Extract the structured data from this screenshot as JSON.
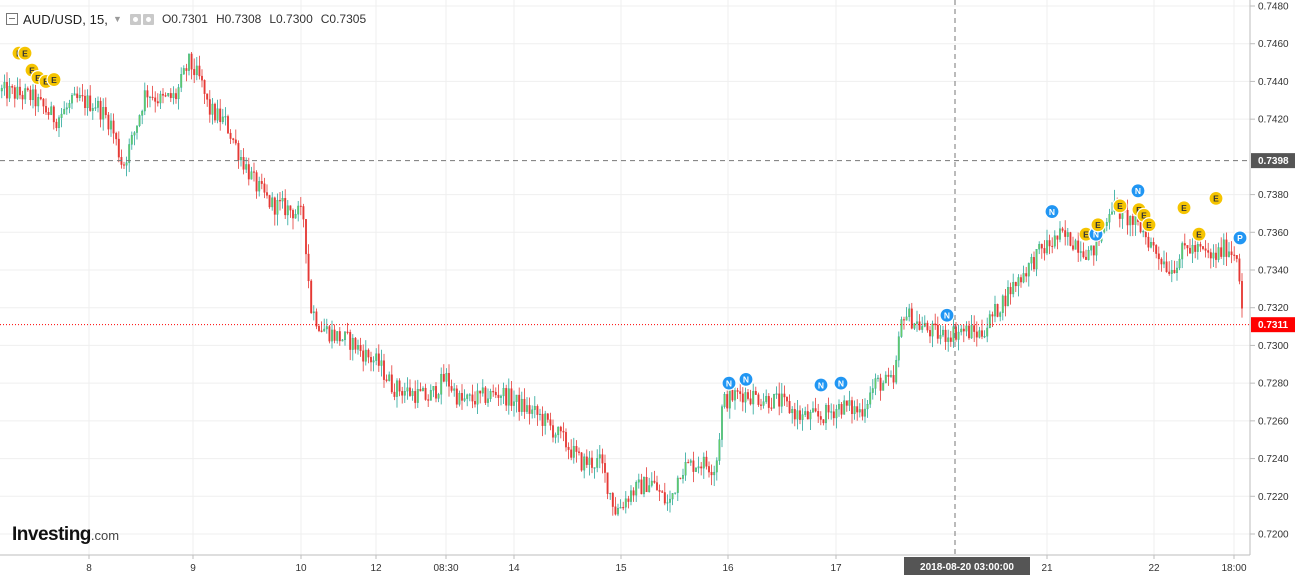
{
  "legend": {
    "symbol": "AUD/USD, 15,",
    "open": "O0.7301",
    "high": "H0.7308",
    "low": "L0.7300",
    "close": "C0.7305"
  },
  "brand": {
    "name": "Investing",
    "domain": ".com"
  },
  "crosshair": {
    "time_label": "2018-08-20 03:00:00",
    "price_label": "0.7398",
    "price": 0.7398
  },
  "last_price": {
    "label": "0.7311",
    "value": 0.7311
  },
  "colors": {
    "up": "#26a69a",
    "up_fill": "#66cc66",
    "down": "#e53935",
    "grid": "#efefef",
    "axis_text": "#333333",
    "last_price": "#ff0000",
    "event_E": "#f5c400",
    "event_N": "#2196f3",
    "label_dark": "#555555"
  },
  "chart_data": {
    "type": "candlestick",
    "title": "AUD/USD, 15,",
    "ylim": [
      0.7188,
      0.7482
    ],
    "y_ticks": [
      "0.7200",
      "0.7220",
      "0.7240",
      "0.7260",
      "0.7280",
      "0.7300",
      "0.7320",
      "0.7340",
      "0.7360",
      "0.7380",
      "0.7420",
      "0.7440",
      "0.7460",
      "0.7480"
    ],
    "x_ticks": [
      "8",
      "9",
      "10",
      "12",
      "08:30",
      "14",
      "15",
      "16",
      "17",
      "21",
      "22",
      "18:00"
    ],
    "grid": true,
    "series_path": [
      [
        0,
        0.7435
      ],
      [
        30,
        0.7432
      ],
      [
        55,
        0.742
      ],
      [
        75,
        0.743
      ],
      [
        95,
        0.7428
      ],
      [
        110,
        0.7418
      ],
      [
        122,
        0.7395
      ],
      [
        132,
        0.741
      ],
      [
        145,
        0.7435
      ],
      [
        160,
        0.743
      ],
      [
        175,
        0.7432
      ],
      [
        188,
        0.745
      ],
      [
        200,
        0.744
      ],
      [
        208,
        0.7425
      ],
      [
        225,
        0.7418
      ],
      [
        240,
        0.74
      ],
      [
        255,
        0.7385
      ],
      [
        270,
        0.7375
      ],
      [
        290,
        0.7372
      ],
      [
        303,
        0.7368
      ],
      [
        310,
        0.732
      ],
      [
        320,
        0.731
      ],
      [
        335,
        0.7305
      ],
      [
        350,
        0.7302
      ],
      [
        365,
        0.7295
      ],
      [
        378,
        0.729
      ],
      [
        392,
        0.7278
      ],
      [
        410,
        0.7275
      ],
      [
        428,
        0.7272
      ],
      [
        445,
        0.7283
      ],
      [
        460,
        0.727
      ],
      [
        478,
        0.7272
      ],
      [
        500,
        0.7275
      ],
      [
        520,
        0.7268
      ],
      [
        540,
        0.7262
      ],
      [
        562,
        0.725
      ],
      [
        580,
        0.7238
      ],
      [
        600,
        0.7238
      ],
      [
        615,
        0.7212
      ],
      [
        630,
        0.7222
      ],
      [
        650,
        0.7228
      ],
      [
        668,
        0.7215
      ],
      [
        680,
        0.7235
      ],
      [
        700,
        0.7238
      ],
      [
        715,
        0.7235
      ],
      [
        722,
        0.727
      ],
      [
        740,
        0.7275
      ],
      [
        760,
        0.7272
      ],
      [
        780,
        0.727
      ],
      [
        800,
        0.7262
      ],
      [
        820,
        0.7262
      ],
      [
        840,
        0.7268
      ],
      [
        860,
        0.7265
      ],
      [
        875,
        0.728
      ],
      [
        893,
        0.728
      ],
      [
        902,
        0.7318
      ],
      [
        920,
        0.731
      ],
      [
        940,
        0.7305
      ],
      [
        960,
        0.7308
      ],
      [
        980,
        0.7306
      ],
      [
        995,
        0.7318
      ],
      [
        1010,
        0.733
      ],
      [
        1025,
        0.734
      ],
      [
        1040,
        0.735
      ],
      [
        1060,
        0.7358
      ],
      [
        1075,
        0.7355
      ],
      [
        1090,
        0.7348
      ],
      [
        1100,
        0.7358
      ],
      [
        1110,
        0.7375
      ],
      [
        1125,
        0.7368
      ],
      [
        1140,
        0.7362
      ],
      [
        1155,
        0.735
      ],
      [
        1170,
        0.734
      ],
      [
        1185,
        0.7352
      ],
      [
        1200,
        0.735
      ],
      [
        1212,
        0.7346
      ],
      [
        1225,
        0.7352
      ],
      [
        1237,
        0.7348
      ],
      [
        1243,
        0.7311
      ]
    ],
    "events": [
      {
        "type": "E",
        "x": 19,
        "price": 0.7455
      },
      {
        "type": "E",
        "x": 25,
        "price": 0.7455
      },
      {
        "type": "E",
        "x": 32,
        "price": 0.7446
      },
      {
        "type": "E",
        "x": 38,
        "price": 0.7442
      },
      {
        "type": "E",
        "x": 46,
        "price": 0.744
      },
      {
        "type": "E",
        "x": 54,
        "price": 0.7441
      },
      {
        "type": "N",
        "x": 729,
        "price": 0.728
      },
      {
        "type": "N",
        "x": 746,
        "price": 0.7282
      },
      {
        "type": "N",
        "x": 821,
        "price": 0.7279
      },
      {
        "type": "N",
        "x": 841,
        "price": 0.728
      },
      {
        "type": "N",
        "x": 947,
        "price": 0.7316
      },
      {
        "type": "N",
        "x": 1052,
        "price": 0.7371
      },
      {
        "type": "E",
        "x": 1086,
        "price": 0.7359
      },
      {
        "type": "N",
        "x": 1096,
        "price": 0.7359
      },
      {
        "type": "E",
        "x": 1098,
        "price": 0.7364
      },
      {
        "type": "E",
        "x": 1120,
        "price": 0.7374
      },
      {
        "type": "N",
        "x": 1138,
        "price": 0.7382
      },
      {
        "type": "E",
        "x": 1139,
        "price": 0.7372
      },
      {
        "type": "E",
        "x": 1144,
        "price": 0.7369
      },
      {
        "type": "E",
        "x": 1149,
        "price": 0.7364
      },
      {
        "type": "E",
        "x": 1184,
        "price": 0.7373
      },
      {
        "type": "E",
        "x": 1199,
        "price": 0.7359
      },
      {
        "type": "E",
        "x": 1216,
        "price": 0.7378
      },
      {
        "type": "P",
        "x": 1240,
        "price": 0.7357
      }
    ]
  }
}
